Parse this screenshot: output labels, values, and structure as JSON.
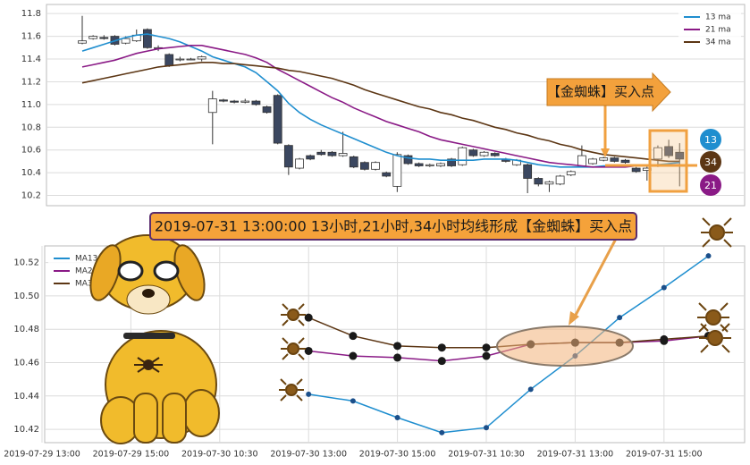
{
  "chart_data": [
    {
      "type": "candlestick",
      "open": [
        11.54,
        11.58,
        11.59,
        11.6,
        11.54,
        11.56,
        11.66,
        11.5,
        11.44,
        11.4,
        11.4,
        11.4,
        10.93,
        11.04,
        11.03,
        11.02,
        11.03,
        10.98,
        11.08,
        10.64,
        10.44,
        10.55,
        10.58,
        10.58,
        10.55,
        10.54,
        10.49,
        10.43,
        10.4,
        10.28,
        10.55,
        10.48,
        10.46,
        10.46,
        10.52,
        10.47,
        10.6,
        10.55,
        10.57,
        10.52,
        10.47,
        10.47,
        10.35,
        10.3,
        10.3,
        10.38,
        10.46,
        10.48,
        10.51,
        10.53,
        10.51,
        10.44,
        10.42,
        10.52,
        10.63,
        10.58
      ],
      "high": [
        11.78,
        11.61,
        11.61,
        11.61,
        11.6,
        11.66,
        11.67,
        11.52,
        11.45,
        11.42,
        11.41,
        11.43,
        11.12,
        11.05,
        11.04,
        11.05,
        11.04,
        10.99,
        11.09,
        10.65,
        10.53,
        10.56,
        10.6,
        10.59,
        10.76,
        10.55,
        10.5,
        10.5,
        10.41,
        10.58,
        10.56,
        10.49,
        10.48,
        10.49,
        10.53,
        10.63,
        10.61,
        10.59,
        10.58,
        10.53,
        10.52,
        10.48,
        10.36,
        10.33,
        10.38,
        10.42,
        10.64,
        10.53,
        10.54,
        10.54,
        10.52,
        10.45,
        10.47,
        10.64,
        10.69,
        10.66
      ],
      "low": [
        11.53,
        11.57,
        11.57,
        11.52,
        11.53,
        11.55,
        11.49,
        11.47,
        11.33,
        11.38,
        11.39,
        11.38,
        10.65,
        11.02,
        11.01,
        11.01,
        10.99,
        10.92,
        10.65,
        10.38,
        10.43,
        10.51,
        10.55,
        10.54,
        10.54,
        10.44,
        10.42,
        10.42,
        10.36,
        10.23,
        10.47,
        10.45,
        10.45,
        10.45,
        10.45,
        10.46,
        10.54,
        10.54,
        10.54,
        10.49,
        10.46,
        10.22,
        10.28,
        10.23,
        10.29,
        10.37,
        10.45,
        10.47,
        10.5,
        10.49,
        10.48,
        10.4,
        10.33,
        10.45,
        10.53,
        10.28
      ],
      "close": [
        11.56,
        11.6,
        11.58,
        11.53,
        11.58,
        11.61,
        11.5,
        11.5,
        11.34,
        11.4,
        11.4,
        11.42,
        11.05,
        11.03,
        11.02,
        11.03,
        11.0,
        10.93,
        10.66,
        10.45,
        10.52,
        10.52,
        10.56,
        10.55,
        10.57,
        10.45,
        10.43,
        10.49,
        10.37,
        10.56,
        10.48,
        10.46,
        10.47,
        10.48,
        10.46,
        10.62,
        10.55,
        10.58,
        10.55,
        10.5,
        10.51,
        10.35,
        10.3,
        10.32,
        10.37,
        10.41,
        10.55,
        10.52,
        10.53,
        10.5,
        10.49,
        10.41,
        10.44,
        10.62,
        10.55,
        10.52
      ],
      "up_color": "#ffffff",
      "down_color": "#3b4760",
      "ylim": [
        10.11,
        11.88
      ],
      "yticks": [
        10.2,
        10.4,
        10.6,
        10.8,
        {
          "value": 11,
          "label": "11.0"
        },
        11.2,
        11.4,
        11.6,
        11.8
      ],
      "grid": true,
      "legend": "upper right",
      "series": [
        {
          "name": "13 ma",
          "color": "#1f8ecf",
          "values": [
            11.47,
            11.5,
            11.53,
            11.56,
            11.59,
            11.61,
            11.62,
            11.6,
            11.58,
            11.55,
            11.51,
            11.47,
            11.42,
            11.39,
            11.36,
            11.33,
            11.28,
            11.2,
            11.12,
            11.01,
            10.93,
            10.87,
            10.82,
            10.78,
            10.74,
            10.7,
            10.66,
            10.62,
            10.58,
            10.55,
            10.53,
            10.52,
            10.52,
            10.51,
            10.51,
            10.51,
            10.51,
            10.52,
            10.52,
            10.52,
            10.51,
            10.49,
            10.47,
            10.46,
            10.45,
            10.45,
            10.45,
            10.45,
            10.46,
            10.46,
            10.46,
            10.46,
            10.46,
            10.47,
            10.48,
            10.49
          ]
        },
        {
          "name": "21 ma",
          "color": "#8a1a86",
          "values": [
            11.33,
            11.35,
            11.37,
            11.39,
            11.42,
            11.45,
            11.47,
            11.49,
            11.5,
            11.51,
            11.52,
            11.52,
            11.5,
            11.48,
            11.46,
            11.44,
            11.41,
            11.37,
            11.31,
            11.26,
            11.21,
            11.16,
            11.11,
            11.06,
            11.02,
            10.97,
            10.93,
            10.89,
            10.85,
            10.82,
            10.79,
            10.76,
            10.72,
            10.69,
            10.67,
            10.65,
            10.63,
            10.61,
            10.59,
            10.57,
            10.55,
            10.53,
            10.51,
            10.49,
            10.48,
            10.47,
            10.46,
            10.45,
            10.45,
            10.45,
            10.45,
            10.46,
            10.46,
            10.46,
            10.47,
            10.47
          ]
        },
        {
          "name": "34 ma",
          "color": "#5c3614",
          "values": [
            11.19,
            11.21,
            11.23,
            11.25,
            11.27,
            11.29,
            11.31,
            11.33,
            11.34,
            11.35,
            11.36,
            11.37,
            11.37,
            11.36,
            11.36,
            11.35,
            11.34,
            11.33,
            11.32,
            11.3,
            11.29,
            11.27,
            11.25,
            11.23,
            11.2,
            11.17,
            11.13,
            11.1,
            11.07,
            11.04,
            11.01,
            10.98,
            10.96,
            10.93,
            10.91,
            10.88,
            10.86,
            10.83,
            10.8,
            10.78,
            10.75,
            10.73,
            10.7,
            10.68,
            10.65,
            10.63,
            10.6,
            10.58,
            10.56,
            10.55,
            10.54,
            10.53,
            10.52,
            10.51,
            10.5,
            10.5
          ]
        }
      ],
      "annotation": "【金蜘蛛】买入点",
      "badges": [
        "13",
        "34",
        "21"
      ]
    },
    {
      "type": "line",
      "categories": [
        "2019-07-29 13:00",
        null,
        "2019-07-29 15:00",
        null,
        "2019-07-30 10:30",
        null,
        "2019-07-30 13:00",
        null,
        "2019-07-30 15:00",
        null,
        "2019-07-31 10:30",
        null,
        "2019-07-31 13:00",
        null,
        "2019-07-31 15:00",
        null
      ],
      "ylim": [
        10.412,
        10.53
      ],
      "yticks": [
        10.42,
        10.44,
        10.46,
        10.48,
        {
          "value": 10.5,
          "label": "10.50"
        },
        10.52
      ],
      "grid": true,
      "legend": "upper left",
      "series": [
        {
          "name": "MA13",
          "color": "#1f8ecf",
          "values": [
            null,
            null,
            null,
            null,
            null,
            null,
            10.441,
            10.437,
            10.427,
            10.418,
            10.421,
            10.444,
            10.464,
            10.487,
            10.505,
            10.524
          ]
        },
        {
          "name": "MA21",
          "color": "#8a1a86",
          "values": [
            null,
            null,
            null,
            null,
            null,
            null,
            10.467,
            10.464,
            10.463,
            10.461,
            10.464,
            10.471,
            10.472,
            10.472,
            10.473,
            10.476
          ]
        },
        {
          "name": "MA34",
          "color": "#5c3614",
          "values": [
            null,
            null,
            null,
            null,
            null,
            null,
            10.487,
            10.476,
            10.47,
            10.469,
            10.469,
            10.471,
            10.472,
            10.472,
            10.474,
            10.476
          ]
        }
      ]
    }
  ],
  "banner": "2019-07-31 13:00:00 13小时,21小时,34小时均线形成【金蜘蛛】买入点"
}
